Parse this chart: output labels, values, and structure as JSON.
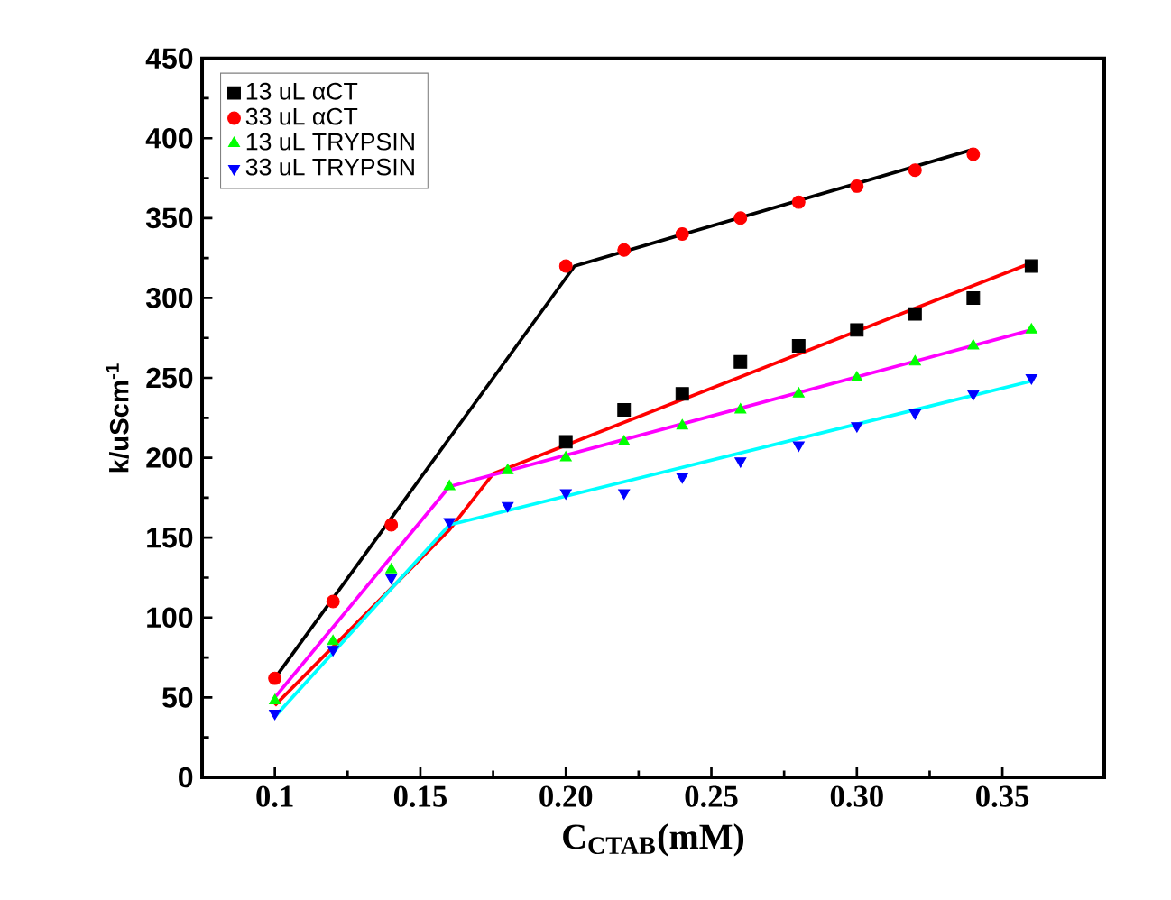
{
  "chart_data": {
    "type": "scatter",
    "xlabel": "C$_{CTAB}$(mM)",
    "ylabel": "k/uScm$^{-1}$",
    "xlim": [
      0.075,
      0.385
    ],
    "ylim": [
      0,
      450
    ],
    "xticks": [
      0.1,
      0.15,
      {
        "value": 0.2,
        "label": "0.20"
      },
      {
        "value": 0.25,
        "label": "0.25"
      },
      {
        "value": 0.3,
        "label": "0.30"
      },
      {
        "value": 0.35,
        "label": "0.35"
      }
    ],
    "yticks": [
      0,
      50,
      100,
      150,
      200,
      250,
      300,
      350,
      400,
      450
    ],
    "grid": false,
    "legend": "top left",
    "series": [
      {
        "name": "13 uL αCT",
        "color": "#000000",
        "marker": "square",
        "x": [
          0.2,
          0.22,
          0.24,
          0.26,
          0.28,
          0.3,
          0.32,
          0.34,
          0.36
        ],
        "values": [
          210,
          230,
          240,
          260,
          270,
          280,
          290,
          300,
          320
        ]
      },
      {
        "name": "33 uL αCT",
        "color": "#ff0000",
        "marker": "circle",
        "x": [
          0.1,
          0.12,
          0.14,
          0.2,
          0.22,
          0.24,
          0.26,
          0.28,
          0.3,
          0.32,
          0.34
        ],
        "values": [
          62,
          110,
          158,
          320,
          330,
          340,
          350,
          360,
          370,
          380,
          390
        ]
      },
      {
        "name": "13 uL TRYPSIN",
        "color": "#00ff00",
        "marker": "triangle",
        "x": [
          0.1,
          0.12,
          0.14,
          0.16,
          0.18,
          0.2,
          0.22,
          0.24,
          0.26,
          0.28,
          0.3,
          0.32,
          0.34,
          0.36
        ],
        "values": [
          48,
          85,
          130,
          182,
          192,
          200,
          210,
          220,
          230,
          240,
          250,
          260,
          270,
          280
        ]
      },
      {
        "name": "33 uL TRYPSIN",
        "color": "#0000ff",
        "marker": "triangle-down",
        "x": [
          0.1,
          0.12,
          0.14,
          0.16,
          0.18,
          0.2,
          0.22,
          0.24,
          0.26,
          0.28,
          0.3,
          0.32,
          0.34,
          0.36
        ],
        "values": [
          40,
          80,
          125,
          160,
          170,
          178,
          178,
          188,
          198,
          208,
          220,
          228,
          240,
          250
        ]
      },
      {
        "type": "line",
        "color": "#000000",
        "marker": "none",
        "x": [
          0.1,
          0.203,
          0.34
        ],
        "values": [
          62,
          320,
          393
        ]
      },
      {
        "type": "line",
        "color": "#ff0000",
        "marker": "none",
        "x": [
          0.1,
          0.16,
          0.175,
          0.36
        ],
        "values": [
          45,
          155,
          190,
          322
        ]
      },
      {
        "type": "line",
        "color": "#ff00ff",
        "marker": "none",
        "x": [
          0.1,
          0.16,
          0.36
        ],
        "values": [
          50,
          182,
          280
        ]
      },
      {
        "type": "line",
        "color": "#00ffff",
        "marker": "none",
        "x": [
          0.1,
          0.16,
          0.36
        ],
        "values": [
          38,
          158,
          248
        ]
      }
    ]
  }
}
